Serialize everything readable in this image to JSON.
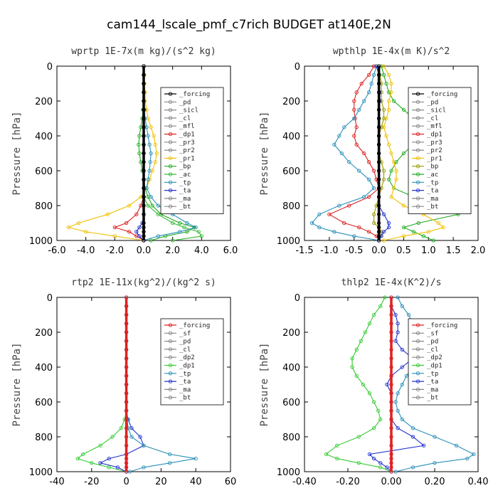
{
  "title": "cam144_lscale_pmf_c7rich  BUDGET at140E,2N",
  "chart_data": [
    {
      "type": "line",
      "subtitle": "wprtp  1E-7x(m kg)/(s^2 kg)",
      "ylabel": "Pressure [hPa]",
      "xlim": [
        -6,
        6
      ],
      "ylim": [
        1000,
        0
      ],
      "xticks": [
        "-6.0",
        "-4.0",
        "-2.0",
        "0.0",
        "2.0",
        "4.0",
        "6.0"
      ],
      "yticks": [
        "0",
        "200",
        "400",
        "600",
        "800",
        "1000"
      ],
      "legend_position": "top-right",
      "legend": [
        "_forcing",
        "_pd",
        "_sicl",
        "_cl",
        "_mfl",
        "_dp1",
        "_pr3",
        "_pr2",
        "_pr1",
        "_bp",
        "_ac",
        "_tp",
        "_ta",
        "_ma",
        "_bt"
      ],
      "pressure": [
        0,
        50,
        100,
        150,
        200,
        250,
        300,
        350,
        400,
        450,
        500,
        550,
        600,
        650,
        700,
        750,
        800,
        850,
        900,
        925,
        950,
        975,
        1000
      ],
      "series": [
        {
          "name": "_pr1",
          "color": "#f0c000",
          "values": [
            0.02,
            0.05,
            0.05,
            0.1,
            0.1,
            0.2,
            0.3,
            0.5,
            0.7,
            0.8,
            0.9,
            0.8,
            0.6,
            0.4,
            0.2,
            -0.2,
            -1.0,
            -2.5,
            -4.5,
            -5.2,
            -4.0,
            -2.0,
            0.0
          ]
        },
        {
          "name": "_bp",
          "color": "#22aa22",
          "values": [
            0.0,
            0.0,
            0.0,
            0.0,
            0.0,
            -0.05,
            -0.1,
            -0.2,
            -0.3,
            -0.35,
            -0.3,
            -0.2,
            -0.1,
            0.0,
            0.1,
            0.3,
            0.6,
            1.2,
            2.5,
            3.5,
            3.0,
            1.5,
            0.5
          ]
        },
        {
          "name": "_ac",
          "color": "#33bb33",
          "values": [
            0.0,
            0.0,
            0.0,
            0.0,
            0.0,
            0.0,
            0.0,
            0.0,
            0.0,
            0.0,
            0.0,
            0.0,
            0.0,
            0.0,
            0.0,
            0.0,
            0.3,
            1.0,
            2.0,
            2.8,
            3.8,
            4.0,
            2.0
          ]
        },
        {
          "name": "_tp",
          "color": "#2a8fb8",
          "values": [
            0.0,
            0.0,
            0.0,
            0.0,
            0.0,
            0.05,
            0.1,
            0.2,
            0.3,
            0.4,
            0.5,
            0.45,
            0.4,
            0.3,
            0.2,
            0.5,
            1.0,
            2.0,
            3.0,
            3.6,
            2.5,
            1.0,
            0.0
          ]
        },
        {
          "name": "_dp1",
          "color": "#dd2222",
          "values": [
            0.0,
            0.0,
            0.0,
            0.0,
            0.0,
            0.0,
            0.0,
            0.0,
            0.0,
            0.0,
            0.0,
            0.0,
            0.0,
            0.0,
            0.0,
            0.0,
            -0.2,
            -0.5,
            -1.2,
            -2.0,
            -1.0,
            -0.5,
            0.0
          ]
        },
        {
          "name": "_ta",
          "color": "#2233cc",
          "values": [
            0.0,
            0.0,
            0.0,
            0.0,
            0.0,
            0.0,
            0.0,
            0.0,
            0.0,
            0.0,
            0.0,
            0.0,
            0.0,
            0.0,
            0.0,
            0.0,
            0.0,
            0.0,
            -0.1,
            -0.3,
            -0.5,
            -0.3,
            0.0
          ]
        },
        {
          "name": "_forcing",
          "color": "#000000",
          "values": [
            0,
            0,
            0,
            0,
            0,
            0,
            0,
            0,
            0,
            0,
            0,
            0,
            0,
            0,
            0,
            0,
            0,
            0,
            0,
            0,
            0,
            0,
            0
          ]
        }
      ]
    },
    {
      "type": "line",
      "subtitle": "wpthlp  1E-4x(m K)/s^2",
      "ylabel": "Pressure [hPa]",
      "xlim": [
        -1.5,
        2.0
      ],
      "ylim": [
        1000,
        0
      ],
      "xticks": [
        "-1.5",
        "-1.0",
        "-0.5",
        "0.0",
        "0.5",
        "1.0",
        "1.5",
        "2.0"
      ],
      "yticks": [
        "0",
        "200",
        "400",
        "600",
        "800",
        "1000"
      ],
      "legend_position": "top-right",
      "legend": [
        "_forcing",
        "_pd",
        "_sicl",
        "_cl",
        "_mfl",
        "_dp1",
        "_pr3",
        "_pr2",
        "_pr1",
        "_bp",
        "_ac",
        "_tp",
        "_ta",
        "_ma",
        "_bt"
      ],
      "pressure": [
        0,
        50,
        100,
        150,
        200,
        250,
        300,
        350,
        400,
        450,
        500,
        550,
        600,
        650,
        700,
        750,
        800,
        850,
        900,
        925,
        950,
        975,
        1000
      ],
      "series": [
        {
          "name": "_dp1",
          "color": "#dd2222",
          "values": [
            -0.1,
            -0.2,
            -0.35,
            -0.45,
            -0.5,
            -0.5,
            -0.48,
            -0.45,
            -0.5,
            -0.45,
            -0.3,
            -0.2,
            -0.1,
            -0.05,
            0.0,
            -0.2,
            -0.6,
            -1.0,
            -0.7,
            -0.4,
            -0.2,
            -0.05,
            0.0
          ]
        },
        {
          "name": "_tp",
          "color": "#2a8fb8",
          "values": [
            -0.05,
            -0.1,
            -0.15,
            -0.2,
            -0.3,
            -0.4,
            -0.5,
            -0.7,
            -0.8,
            -0.9,
            -0.75,
            -0.6,
            -0.4,
            -0.2,
            -0.1,
            -0.3,
            -0.8,
            -1.2,
            -1.35,
            -1.2,
            -0.9,
            -0.5,
            0.0
          ]
        },
        {
          "name": "_ac",
          "color": "#22aa22",
          "values": [
            0.05,
            0.1,
            0.15,
            0.2,
            0.3,
            0.5,
            0.7,
            0.95,
            0.9,
            0.7,
            0.5,
            0.35,
            0.25,
            0.2,
            0.3,
            0.7,
            1.2,
            1.6,
            0.8,
            0.5,
            0.7,
            0.9,
            1.1
          ]
        },
        {
          "name": "_pr1",
          "color": "#f0c000",
          "values": [
            0.1,
            0.2,
            0.25,
            0.25,
            0.2,
            0.2,
            0.15,
            0.1,
            0.15,
            0.2,
            0.25,
            0.3,
            0.35,
            0.35,
            0.3,
            0.25,
            0.5,
            0.9,
            1.2,
            1.3,
            1.0,
            0.5,
            0.1
          ]
        },
        {
          "name": "_bp",
          "color": "#9a9a00",
          "values": [
            0.0,
            0.02,
            0.05,
            0.05,
            0.05,
            0.1,
            0.1,
            0.05,
            0.0,
            0.0,
            0.0,
            0.05,
            0.1,
            0.1,
            0.05,
            0.0,
            -0.05,
            -0.1,
            -0.1,
            0.0,
            0.05,
            0.05,
            0.0
          ]
        },
        {
          "name": "_ta",
          "color": "#2233cc",
          "values": [
            -0.05,
            0.0,
            0.0,
            0.02,
            0.02,
            0.0,
            0.0,
            0.0,
            0.0,
            0.0,
            0.0,
            0.0,
            0.0,
            0.0,
            0.0,
            0.0,
            0.0,
            0.1,
            0.2,
            0.2,
            0.1,
            0.05,
            0.0
          ]
        },
        {
          "name": "_forcing",
          "color": "#000000",
          "values": [
            0,
            0,
            0,
            0,
            0,
            0,
            0,
            0,
            0,
            0,
            0,
            0,
            0,
            0,
            0,
            0,
            0,
            0,
            0,
            0,
            0,
            0,
            0
          ]
        }
      ]
    },
    {
      "type": "line",
      "subtitle": "rtp2  1E-11x(kg^2)/(kg^2 s)",
      "ylabel": "Pressure [hPa]",
      "xlim": [
        -40,
        60
      ],
      "ylim": [
        1000,
        0
      ],
      "xticks": [
        "-40",
        "-20",
        "0",
        "20",
        "40",
        "60"
      ],
      "yticks": [
        "0",
        "200",
        "400",
        "600",
        "800",
        "1000"
      ],
      "legend_position": "top-right",
      "legend": [
        "_forcing",
        "_sf",
        "_pd",
        "_cl",
        "_dp2",
        "_dp1",
        "_tp",
        "_ta",
        "_ma",
        "_bt"
      ],
      "pressure": [
        0,
        50,
        100,
        150,
        200,
        250,
        300,
        350,
        400,
        450,
        500,
        550,
        600,
        650,
        700,
        750,
        800,
        850,
        900,
        925,
        950,
        975,
        1000
      ],
      "series": [
        {
          "name": "_dp1",
          "color": "#33cc33",
          "values": [
            0.0,
            0.0,
            0.0,
            0.0,
            0.0,
            0.0,
            0.0,
            0.0,
            0.0,
            0.0,
            0.0,
            0.0,
            0.0,
            0.0,
            -1.0,
            -3.0,
            -8.0,
            -15.0,
            -25.0,
            -28.0,
            -20.0,
            -10.0,
            0.0
          ]
        },
        {
          "name": "_ta",
          "color": "#2233cc",
          "values": [
            0.0,
            0.0,
            0.0,
            0.0,
            0.0,
            0.0,
            0.0,
            0.0,
            0.0,
            0.0,
            0.0,
            0.0,
            0.0,
            0.0,
            1.0,
            3.0,
            8.0,
            10.0,
            0.0,
            -10.0,
            -15.0,
            -5.0,
            0.0
          ]
        },
        {
          "name": "_tp",
          "color": "#2a8fb8",
          "values": [
            0.0,
            0.0,
            0.0,
            0.0,
            0.0,
            0.0,
            0.0,
            0.0,
            0.0,
            0.0,
            0.0,
            0.0,
            0.0,
            0.0,
            0.5,
            1.0,
            3.0,
            10.0,
            25.0,
            40.0,
            25.0,
            10.0,
            2.0
          ]
        },
        {
          "name": "_forcing",
          "color": "#dd2222",
          "values": [
            0,
            0,
            0,
            0,
            0,
            0,
            0,
            0,
            0,
            0,
            0,
            0,
            0,
            0,
            0,
            0,
            0,
            0,
            0,
            0,
            0,
            0,
            0
          ]
        }
      ]
    },
    {
      "type": "line",
      "subtitle": "thlp2  1E-4x(K^2)/s",
      "ylabel": "Pressure [hPa]",
      "xlim": [
        -0.4,
        0.4
      ],
      "ylim": [
        1000,
        0
      ],
      "xticks": [
        "-0.40",
        "-0.20",
        "0.00",
        "0.20",
        "0.40"
      ],
      "yticks": [
        "0",
        "200",
        "400",
        "600",
        "800",
        "1000"
      ],
      "legend_position": "top-right",
      "legend": [
        "_forcing",
        "_sf",
        "_pd",
        "_cl",
        "_dp2",
        "_dp1",
        "_tp",
        "_ta",
        "_ma",
        "_bt"
      ],
      "pressure": [
        0,
        50,
        100,
        150,
        200,
        250,
        300,
        350,
        400,
        450,
        500,
        550,
        600,
        650,
        700,
        750,
        800,
        850,
        900,
        925,
        950,
        975,
        1000
      ],
      "series": [
        {
          "name": "_dp1",
          "color": "#33cc33",
          "values": [
            -0.03,
            -0.05,
            -0.08,
            -0.1,
            -0.12,
            -0.14,
            -0.16,
            -0.18,
            -0.18,
            -0.16,
            -0.13,
            -0.1,
            -0.08,
            -0.06,
            -0.05,
            -0.08,
            -0.15,
            -0.25,
            -0.3,
            -0.25,
            -0.15,
            -0.05,
            0.0
          ]
        },
        {
          "name": "_tp",
          "color": "#2a8fb8",
          "values": [
            0.03,
            0.05,
            0.08,
            0.1,
            0.12,
            0.14,
            0.15,
            0.13,
            0.1,
            0.07,
            0.05,
            0.03,
            0.02,
            0.03,
            0.05,
            0.1,
            0.2,
            0.3,
            0.38,
            0.35,
            0.2,
            0.1,
            0.02
          ]
        },
        {
          "name": "_ta",
          "color": "#2233cc",
          "values": [
            0.0,
            0.0,
            0.02,
            0.03,
            0.03,
            0.02,
            0.05,
            0.1,
            0.05,
            0.0,
            -0.02,
            0.0,
            0.0,
            0.0,
            0.0,
            0.03,
            0.1,
            0.15,
            -0.1,
            -0.08,
            -0.05,
            -0.02,
            0.0
          ]
        },
        {
          "name": "_forcing",
          "color": "#dd2222",
          "values": [
            0,
            0,
            0,
            0,
            0,
            0,
            0,
            0,
            0,
            0,
            0,
            0,
            0,
            0,
            0,
            0,
            0,
            0,
            0,
            0,
            0,
            0,
            0
          ]
        }
      ]
    }
  ]
}
